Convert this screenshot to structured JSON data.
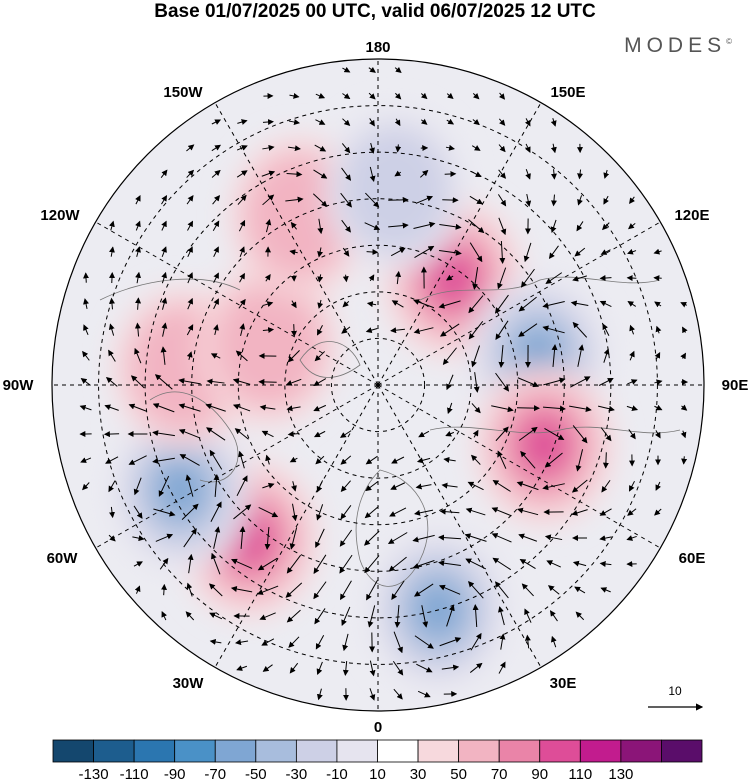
{
  "title": "Base 01/07/2025 00 UTC, valid 06/07/2025 12 UTC",
  "brand": "MODES",
  "brand_mark": "©",
  "map": {
    "projection": "north-polar-stereographic",
    "longitude_labels": [
      "180",
      "150E",
      "120E",
      "90E",
      "60E",
      "30E",
      "0",
      "30W",
      "60W",
      "90W",
      "120W",
      "150W"
    ],
    "reference_vector_label": "10",
    "colors": {
      "positive": [
        "#f7d9dd",
        "#f2b4c2",
        "#ea84a8",
        "#de4d98",
        "#c21c8e",
        "#8b1578",
        "#5a0d6a"
      ],
      "negative": [
        "#e6e4ef",
        "#cdd0e6",
        "#a8bddd",
        "#7fa6d3",
        "#4a8fc5",
        "#2b6ea7",
        "#14476e"
      ]
    },
    "anomaly_centres": [
      {
        "sign": "+",
        "strength": 3,
        "lon": 145,
        "lat": 62
      },
      {
        "sign": "-",
        "strength": 4,
        "lon": 100,
        "lat": 55
      },
      {
        "sign": "+",
        "strength": 3,
        "lon": 70,
        "lat": 52
      },
      {
        "sign": "-",
        "strength": 3,
        "lon": 15,
        "lat": 40
      },
      {
        "sign": "+",
        "strength": 3,
        "lon": -40,
        "lat": 47
      },
      {
        "sign": "-",
        "strength": 3,
        "lon": -62,
        "lat": 42
      },
      {
        "sign": "+",
        "strength": 1,
        "lon": -95,
        "lat": 48
      },
      {
        "sign": "+",
        "strength": 1,
        "lon": -110,
        "lat": 65
      },
      {
        "sign": "+",
        "strength": 1,
        "lon": -155,
        "lat": 50
      },
      {
        "sign": "-",
        "strength": 1,
        "lon": 175,
        "lat": 48
      }
    ]
  },
  "colorbar": {
    "labels": [
      "-130",
      "-110",
      "-90",
      "-70",
      "-50",
      "-30",
      "-10",
      "10",
      "30",
      "50",
      "70",
      "90",
      "110",
      "130"
    ],
    "colors": [
      "#14476e",
      "#1d5d8e",
      "#2b76b0",
      "#4a91c7",
      "#7fa6d3",
      "#a8bddd",
      "#cdd0e6",
      "#e6e4ef",
      "#ffffff",
      "#f7d9dd",
      "#f2b4c2",
      "#ea84a8",
      "#de4d98",
      "#c21c8e",
      "#8b1578",
      "#5a0d6a"
    ]
  }
}
